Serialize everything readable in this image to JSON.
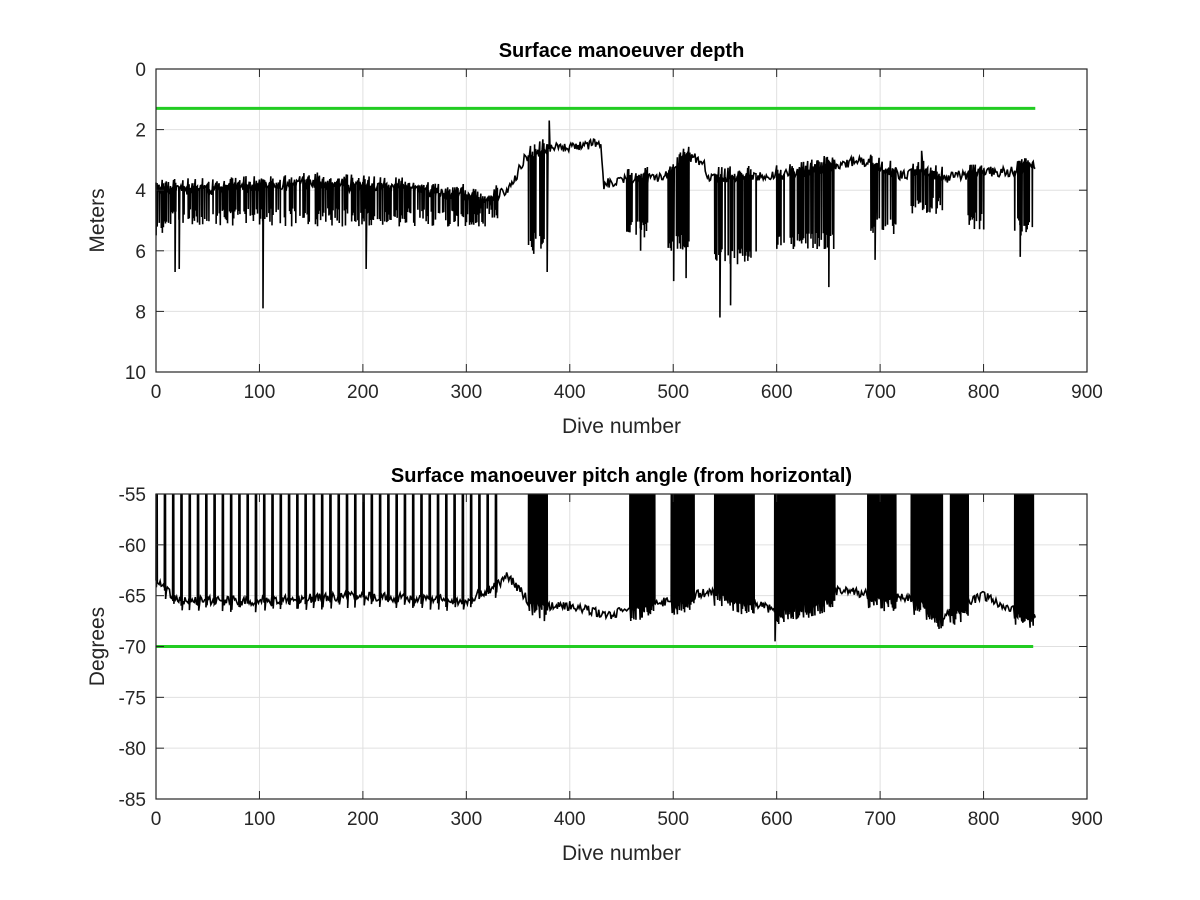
{
  "chart_data": [
    {
      "type": "line",
      "title": "Surface manoeuver depth",
      "xlabel": "Dive number",
      "ylabel": "Meters",
      "xlim": [
        0,
        900
      ],
      "ylim": [
        0,
        10
      ],
      "y_reversed": true,
      "grid": true,
      "x_ticks": [
        "0",
        "100",
        "200",
        "300",
        "400",
        "500",
        "600",
        "700",
        "800",
        "900"
      ],
      "y_ticks": [
        "0",
        "2",
        "4",
        "6",
        "8",
        "10"
      ],
      "colors": {
        "series": "#000000",
        "threshold": "#22cc22",
        "grid": "#e0e0e0"
      },
      "threshold": {
        "y": 1.3,
        "x_range": [
          0,
          850
        ]
      },
      "series": [
        {
          "style": "dense-oscillation",
          "x_range": [
            0,
            850
          ],
          "baseline": [
            [
              0,
              4.0
            ],
            [
              50,
              4.0
            ],
            [
              100,
              3.9
            ],
            [
              150,
              3.8
            ],
            [
              200,
              3.9
            ],
            [
              250,
              4.0
            ],
            [
              300,
              4.2
            ],
            [
              320,
              4.5
            ],
            [
              330,
              4.2
            ],
            [
              345,
              3.8
            ],
            [
              355,
              3.0
            ],
            [
              365,
              2.9
            ],
            [
              380,
              2.6
            ],
            [
              400,
              2.6
            ],
            [
              430,
              2.4
            ],
            [
              433,
              3.8
            ],
            [
              450,
              3.6
            ],
            [
              460,
              3.7
            ],
            [
              480,
              3.6
            ],
            [
              500,
              3.5
            ],
            [
              510,
              2.9
            ],
            [
              520,
              2.9
            ],
            [
              530,
              3.1
            ],
            [
              533,
              3.6
            ],
            [
              550,
              3.6
            ],
            [
              580,
              3.6
            ],
            [
              600,
              3.5
            ],
            [
              620,
              3.5
            ],
            [
              640,
              3.3
            ],
            [
              660,
              3.2
            ],
            [
              680,
              3.0
            ],
            [
              700,
              3.3
            ],
            [
              720,
              3.5
            ],
            [
              740,
              3.4
            ],
            [
              760,
              3.6
            ],
            [
              780,
              3.5
            ],
            [
              800,
              3.4
            ],
            [
              830,
              3.4
            ],
            [
              848,
              3.2
            ]
          ],
          "spike_bands": [
            {
              "x_range": [
                0,
                10
              ],
              "low": 5.5
            },
            {
              "x_range": [
                10,
                330
              ],
              "low": 5.2
            },
            {
              "x_range": [
                360,
                378
              ],
              "low": 6.0
            },
            {
              "x_range": [
                455,
                475
              ],
              "low": 5.6
            },
            {
              "x_range": [
                495,
                515
              ],
              "low": 6.0
            },
            {
              "x_range": [
                540,
                580
              ],
              "low": 6.5
            },
            {
              "x_range": [
                600,
                655
              ],
              "low": 6.0
            },
            {
              "x_range": [
                690,
                715
              ],
              "low": 5.5
            },
            {
              "x_range": [
                730,
                760
              ],
              "low": 4.8
            },
            {
              "x_range": [
                785,
                800
              ],
              "low": 5.3
            },
            {
              "x_range": [
                830,
                848
              ],
              "low": 5.5
            }
          ],
          "peaks": [
            [
              18,
              6.7
            ],
            [
              22,
              6.6
            ],
            [
              103,
              7.9
            ],
            [
              203,
              6.6
            ],
            [
              365,
              6.1
            ],
            [
              378,
              6.7
            ],
            [
              380,
              1.7
            ],
            [
              468,
              6.0
            ],
            [
              500,
              7.0
            ],
            [
              512,
              6.9
            ],
            [
              545,
              8.2
            ],
            [
              555,
              7.8
            ],
            [
              650,
              7.2
            ],
            [
              695,
              6.3
            ],
            [
              740,
              2.7
            ],
            [
              835,
              6.2
            ]
          ]
        }
      ]
    },
    {
      "type": "line",
      "title": "Surface manoeuver pitch angle (from horizontal)",
      "xlabel": "Dive number",
      "ylabel": "Degrees",
      "xlim": [
        0,
        900
      ],
      "ylim": [
        -85,
        -55
      ],
      "grid": true,
      "x_ticks": [
        "0",
        "100",
        "200",
        "300",
        "400",
        "500",
        "600",
        "700",
        "800",
        "900"
      ],
      "y_ticks": [
        "-55",
        "-60",
        "-65",
        "-70",
        "-75",
        "-80",
        "-85"
      ],
      "colors": {
        "series": "#000000",
        "threshold": "#22cc22",
        "grid": "#e0e0e0"
      },
      "threshold": {
        "y": -70,
        "x_range": [
          0,
          848
        ]
      },
      "series": [
        {
          "style": "dense-oscillation",
          "x_range": [
            0,
            850
          ],
          "baseline": [
            [
              0,
              -63.5
            ],
            [
              20,
              -65.5
            ],
            [
              100,
              -65.5
            ],
            [
              200,
              -65.0
            ],
            [
              300,
              -65.5
            ],
            [
              330,
              -64.0
            ],
            [
              340,
              -63.0
            ],
            [
              360,
              -65.5
            ],
            [
              380,
              -66.0
            ],
            [
              400,
              -66.0
            ],
            [
              420,
              -66.5
            ],
            [
              440,
              -67.0
            ],
            [
              460,
              -66.0
            ],
            [
              500,
              -65.5
            ],
            [
              540,
              -64.5
            ],
            [
              570,
              -65.5
            ],
            [
              600,
              -66.5
            ],
            [
              640,
              -65.5
            ],
            [
              660,
              -64.5
            ],
            [
              700,
              -65.0
            ],
            [
              740,
              -65.5
            ],
            [
              760,
              -67.0
            ],
            [
              780,
              -66.0
            ],
            [
              800,
              -65.0
            ],
            [
              830,
              -66.5
            ],
            [
              848,
              -67.0
            ]
          ],
          "spike_bands": [
            {
              "x_range": [
                0,
                330
              ],
              "high": -55,
              "spaced": true
            },
            {
              "x_range": [
                360,
                378
              ],
              "high": -55
            },
            {
              "x_range": [
                458,
                482
              ],
              "high": -55
            },
            {
              "x_range": [
                498,
                520
              ],
              "high": -55
            },
            {
              "x_range": [
                540,
                578
              ],
              "high": -55
            },
            {
              "x_range": [
                598,
                656
              ],
              "high": -55
            },
            {
              "x_range": [
                688,
                715
              ],
              "high": -55
            },
            {
              "x_range": [
                730,
                760
              ],
              "high": -55
            },
            {
              "x_range": [
                768,
                785
              ],
              "high": -55
            },
            {
              "x_range": [
                830,
                848
              ],
              "high": -55
            }
          ],
          "peaks": [
            [
              598,
              -69.5
            ],
            [
              760,
              -68.0
            ],
            [
              375,
              -67.5
            ]
          ]
        }
      ]
    }
  ]
}
